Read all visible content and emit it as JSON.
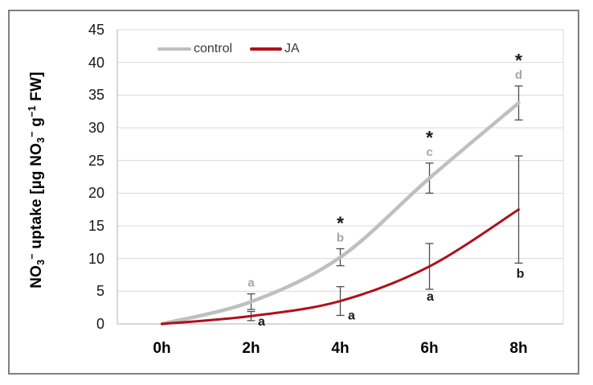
{
  "y_axis_label": {
    "p1": "NO",
    "sub1": "3",
    "sup1": "−",
    "p2": " uptake [µg NO",
    "sub2": "3",
    "sup2": "−",
    "p3": " g",
    "sup3": "−1",
    "p4": " FW]"
  },
  "chart_data": {
    "type": "line",
    "title": "",
    "categories": [
      "0h",
      "2h",
      "4h",
      "6h",
      "8h"
    ],
    "ylabel": "NO3− uptake [µg NO3− g−1 FW]",
    "ylim": [
      0,
      45
    ],
    "y_tick_step": 5,
    "y_ticks": [
      0,
      5,
      10,
      15,
      20,
      25,
      30,
      35,
      40,
      45
    ],
    "grid": "horizontal",
    "legend": {
      "position": "top-inside-left",
      "entries": [
        "control",
        "JA"
      ]
    },
    "series": [
      {
        "name": "control",
        "color": "#BFBFBF",
        "values": [
          0,
          3.4,
          10.2,
          22.3,
          33.8
        ],
        "errors": [
          0,
          1.2,
          1.3,
          2.3,
          2.6
        ],
        "sig_letters": [
          "",
          "a",
          "b",
          "c",
          "d"
        ],
        "letter_color": "#A6A6A6"
      },
      {
        "name": "JA",
        "color": "#AE111B",
        "values": [
          0,
          1.2,
          3.5,
          8.8,
          17.5
        ],
        "errors": [
          0,
          0.7,
          2.2,
          3.5,
          8.2
        ],
        "sig_letters": [
          "",
          "a",
          "a",
          "a",
          "b"
        ],
        "letter_color": "#1A1A1A"
      }
    ],
    "significance_asterisks": [
      false,
      false,
      true,
      true,
      true
    ],
    "asterisk_symbol": "*",
    "colors": {
      "grid": "#D9D9D9",
      "axis": "#BFBFBF",
      "error_bar": "#4D4D4D",
      "asterisk": "#1A1A1A",
      "frame_border": "#7F7F7F"
    }
  }
}
